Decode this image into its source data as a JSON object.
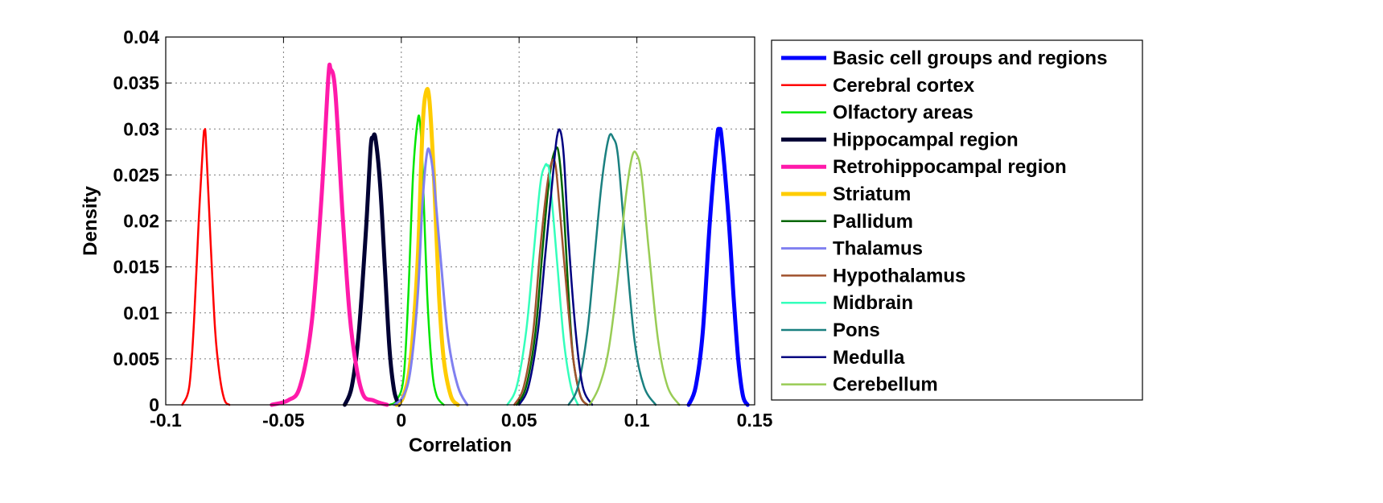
{
  "chart_data": {
    "type": "line",
    "xlabel": "Correlation",
    "ylabel": "Density",
    "xlim": [
      -0.1,
      0.15
    ],
    "ylim": [
      0,
      0.04
    ],
    "x_ticks": [
      -0.1,
      -0.05,
      0,
      0.05,
      0.1,
      0.15
    ],
    "x_tick_labels": [
      "-0.1",
      "-0.05",
      "0",
      "0.05",
      "0.1",
      "0.15"
    ],
    "y_ticks": [
      0,
      0.005,
      0.01,
      0.015,
      0.02,
      0.025,
      0.03,
      0.035,
      0.04
    ],
    "y_tick_labels": [
      "0",
      "0.005",
      "0.01",
      "0.015",
      "0.02",
      "0.025",
      "0.03",
      "0.035",
      "0.04"
    ],
    "grid": true,
    "legend_position": "outside-right",
    "series": [
      {
        "name": "Basic cell groups and regions",
        "color": "#0000ff",
        "width": 5,
        "x": [
          0.122,
          0.125,
          0.128,
          0.131,
          0.134,
          0.135,
          0.136,
          0.139,
          0.141,
          0.143,
          0.145,
          0.147
        ],
        "y": [
          0,
          0.002,
          0.008,
          0.02,
          0.029,
          0.0298,
          0.029,
          0.02,
          0.012,
          0.005,
          0.001,
          0
        ]
      },
      {
        "name": "Cerebral cortex",
        "color": "#ff0000",
        "width": 2.5,
        "x": [
          -0.093,
          -0.09,
          -0.088,
          -0.086,
          -0.084,
          -0.0835,
          -0.083,
          -0.081,
          -0.079,
          -0.077,
          -0.075,
          -0.073
        ],
        "y": [
          0,
          0.002,
          0.009,
          0.02,
          0.029,
          0.0295,
          0.029,
          0.018,
          0.008,
          0.003,
          0.0005,
          0
        ]
      },
      {
        "name": "Olfactory areas",
        "color": "#00e600",
        "width": 2.5,
        "x": [
          -0.005,
          -0.002,
          0.001,
          0.003,
          0.005,
          0.007,
          0.008,
          0.009,
          0.011,
          0.013,
          0.015,
          0.018
        ],
        "y": [
          0,
          0.0005,
          0.003,
          0.012,
          0.025,
          0.031,
          0.0305,
          0.026,
          0.012,
          0.004,
          0.001,
          0
        ]
      },
      {
        "name": "Hippocampal region",
        "color": "#000033",
        "width": 5,
        "x": [
          -0.024,
          -0.021,
          -0.018,
          -0.015,
          -0.013,
          -0.012,
          -0.011,
          -0.009,
          -0.007,
          -0.005,
          -0.003,
          -0.001
        ],
        "y": [
          0,
          0.002,
          0.008,
          0.019,
          0.028,
          0.029,
          0.029,
          0.024,
          0.015,
          0.006,
          0.0015,
          0
        ]
      },
      {
        "name": "Retrohippocampal region",
        "color": "#ff1aaa",
        "width": 5,
        "x": [
          -0.055,
          -0.048,
          -0.043,
          -0.038,
          -0.034,
          -0.031,
          -0.03,
          -0.028,
          -0.025,
          -0.022,
          -0.019,
          -0.016,
          -0.012,
          -0.009,
          -0.006
        ],
        "y": [
          0,
          0.0005,
          0.002,
          0.009,
          0.022,
          0.0355,
          0.0365,
          0.034,
          0.021,
          0.01,
          0.004,
          0.001,
          0.0005,
          0.0002,
          0
        ]
      },
      {
        "name": "Striatum",
        "color": "#ffcc00",
        "width": 5,
        "x": [
          -0.002,
          0.001,
          0.004,
          0.007,
          0.009,
          0.0105,
          0.012,
          0.014,
          0.016,
          0.018,
          0.021,
          0.024
        ],
        "y": [
          0,
          0.001,
          0.005,
          0.016,
          0.03,
          0.034,
          0.033,
          0.024,
          0.012,
          0.005,
          0.001,
          0
        ]
      },
      {
        "name": "Pallidum",
        "color": "#006600",
        "width": 2.5,
        "x": [
          0.049,
          0.053,
          0.057,
          0.06,
          0.063,
          0.0655,
          0.067,
          0.069,
          0.071,
          0.073,
          0.076,
          0.079
        ],
        "y": [
          0,
          0.002,
          0.008,
          0.017,
          0.025,
          0.0278,
          0.027,
          0.021,
          0.012,
          0.005,
          0.001,
          0
        ]
      },
      {
        "name": "Thalamus",
        "color": "#8080f0",
        "width": 3,
        "x": [
          -0.003,
          0.001,
          0.004,
          0.007,
          0.009,
          0.011,
          0.0125,
          0.014,
          0.017,
          0.02,
          0.024,
          0.028
        ],
        "y": [
          0,
          0.001,
          0.004,
          0.012,
          0.022,
          0.0275,
          0.027,
          0.024,
          0.015,
          0.007,
          0.002,
          0
        ]
      },
      {
        "name": "Hypothalamus",
        "color": "#a0522d",
        "width": 2.5,
        "x": [
          0.048,
          0.052,
          0.056,
          0.059,
          0.062,
          0.064,
          0.0655,
          0.067,
          0.07,
          0.073,
          0.076,
          0.079
        ],
        "y": [
          0,
          0.002,
          0.008,
          0.017,
          0.024,
          0.0265,
          0.026,
          0.022,
          0.013,
          0.005,
          0.001,
          0
        ]
      },
      {
        "name": "Midbrain",
        "color": "#33ffbb",
        "width": 2.5,
        "x": [
          0.045,
          0.049,
          0.053,
          0.056,
          0.059,
          0.061,
          0.062,
          0.063,
          0.066,
          0.069,
          0.072,
          0.075
        ],
        "y": [
          0,
          0.002,
          0.008,
          0.016,
          0.024,
          0.026,
          0.026,
          0.025,
          0.016,
          0.007,
          0.002,
          0
        ]
      },
      {
        "name": "Pons",
        "color": "#1a8080",
        "width": 2.5,
        "x": [
          0.071,
          0.075,
          0.079,
          0.082,
          0.085,
          0.088,
          0.09,
          0.092,
          0.095,
          0.099,
          0.103,
          0.108
        ],
        "y": [
          0,
          0.002,
          0.008,
          0.016,
          0.024,
          0.029,
          0.029,
          0.027,
          0.018,
          0.007,
          0.002,
          0
        ]
      },
      {
        "name": "Medulla",
        "color": "#000080",
        "width": 2.5,
        "x": [
          0.05,
          0.054,
          0.058,
          0.061,
          0.064,
          0.066,
          0.0675,
          0.069,
          0.071,
          0.074,
          0.077,
          0.081
        ],
        "y": [
          0,
          0.002,
          0.008,
          0.016,
          0.024,
          0.029,
          0.0298,
          0.027,
          0.018,
          0.008,
          0.002,
          0
        ]
      },
      {
        "name": "Cerebellum",
        "color": "#99cc55",
        "width": 2.5,
        "x": [
          0.08,
          0.084,
          0.088,
          0.092,
          0.095,
          0.098,
          0.1,
          0.102,
          0.105,
          0.109,
          0.113,
          0.118
        ],
        "y": [
          0,
          0.002,
          0.006,
          0.014,
          0.022,
          0.027,
          0.0272,
          0.025,
          0.017,
          0.007,
          0.002,
          0
        ]
      }
    ]
  }
}
